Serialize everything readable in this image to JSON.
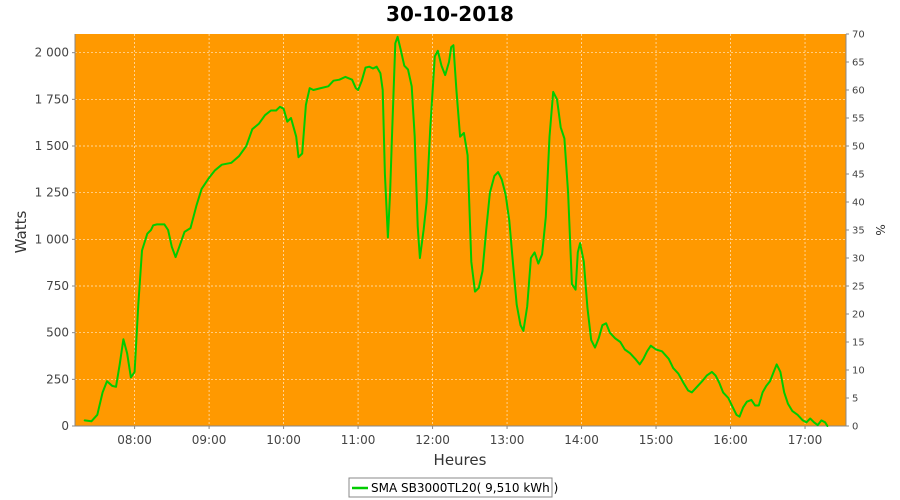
{
  "chart_data": {
    "type": "line",
    "title": "30-10-2018",
    "xlabel": "Heures",
    "ylabel": "Watts",
    "y2label": "%",
    "xlim": [
      7.2,
      17.55
    ],
    "ylim": [
      0,
      2100
    ],
    "y2lim": [
      0,
      70
    ],
    "x_ticks": [
      {
        "v": 8,
        "label": "08:00"
      },
      {
        "v": 9,
        "label": "09:00"
      },
      {
        "v": 10,
        "label": "10:00"
      },
      {
        "v": 11,
        "label": "11:00"
      },
      {
        "v": 12,
        "label": "12:00"
      },
      {
        "v": 13,
        "label": "13:00"
      },
      {
        "v": 14,
        "label": "14:00"
      },
      {
        "v": 15,
        "label": "15:00"
      },
      {
        "v": 16,
        "label": "16:00"
      },
      {
        "v": 17,
        "label": "17:00"
      }
    ],
    "y_ticks": [
      {
        "v": 0,
        "label": "0"
      },
      {
        "v": 250,
        "label": "250"
      },
      {
        "v": 500,
        "label": "500"
      },
      {
        "v": 750,
        "label": "750"
      },
      {
        "v": 1000,
        "label": "1 000"
      },
      {
        "v": 1250,
        "label": "1 250"
      },
      {
        "v": 1500,
        "label": "1 500"
      },
      {
        "v": 1750,
        "label": "1 750"
      },
      {
        "v": 2000,
        "label": "2 000"
      }
    ],
    "y2_ticks": [
      {
        "v": 0,
        "label": "0"
      },
      {
        "v": 5,
        "label": "5"
      },
      {
        "v": 10,
        "label": "10"
      },
      {
        "v": 15,
        "label": "15"
      },
      {
        "v": 20,
        "label": "20"
      },
      {
        "v": 25,
        "label": "25"
      },
      {
        "v": 30,
        "label": "30"
      },
      {
        "v": 35,
        "label": "35"
      },
      {
        "v": 40,
        "label": "40"
      },
      {
        "v": 45,
        "label": "45"
      },
      {
        "v": 50,
        "label": "50"
      },
      {
        "v": 55,
        "label": "55"
      },
      {
        "v": 60,
        "label": "60"
      },
      {
        "v": 65,
        "label": "65"
      },
      {
        "v": 70,
        "label": "70"
      }
    ],
    "grid": true,
    "background_color": "#ff9900",
    "legend_position": "bottom",
    "series": [
      {
        "name": "SMA SB3000TL20( 9,510 kWh )",
        "color": "#00cc00",
        "points": [
          [
            7.33,
            30
          ],
          [
            7.42,
            25
          ],
          [
            7.5,
            60
          ],
          [
            7.57,
            180
          ],
          [
            7.63,
            240
          ],
          [
            7.7,
            215
          ],
          [
            7.75,
            210
          ],
          [
            7.8,
            330
          ],
          [
            7.85,
            465
          ],
          [
            7.9,
            390
          ],
          [
            7.95,
            260
          ],
          [
            8.0,
            290
          ],
          [
            8.05,
            650
          ],
          [
            8.1,
            940
          ],
          [
            8.17,
            1030
          ],
          [
            8.22,
            1050
          ],
          [
            8.25,
            1075
          ],
          [
            8.3,
            1080
          ],
          [
            8.4,
            1080
          ],
          [
            8.45,
            1050
          ],
          [
            8.5,
            960
          ],
          [
            8.55,
            905
          ],
          [
            8.6,
            960
          ],
          [
            8.67,
            1040
          ],
          [
            8.75,
            1060
          ],
          [
            8.83,
            1180
          ],
          [
            8.9,
            1270
          ],
          [
            9.0,
            1330
          ],
          [
            9.08,
            1370
          ],
          [
            9.17,
            1400
          ],
          [
            9.3,
            1410
          ],
          [
            9.4,
            1445
          ],
          [
            9.5,
            1500
          ],
          [
            9.58,
            1590
          ],
          [
            9.67,
            1620
          ],
          [
            9.75,
            1665
          ],
          [
            9.83,
            1690
          ],
          [
            9.9,
            1690
          ],
          [
            9.95,
            1710
          ],
          [
            10.0,
            1700
          ],
          [
            10.05,
            1630
          ],
          [
            10.1,
            1650
          ],
          [
            10.17,
            1550
          ],
          [
            10.2,
            1440
          ],
          [
            10.25,
            1460
          ],
          [
            10.3,
            1720
          ],
          [
            10.35,
            1810
          ],
          [
            10.4,
            1800
          ],
          [
            10.5,
            1810
          ],
          [
            10.6,
            1820
          ],
          [
            10.67,
            1850
          ],
          [
            10.75,
            1855
          ],
          [
            10.83,
            1870
          ],
          [
            10.92,
            1855
          ],
          [
            10.97,
            1810
          ],
          [
            11.0,
            1800
          ],
          [
            11.05,
            1850
          ],
          [
            11.1,
            1920
          ],
          [
            11.15,
            1925
          ],
          [
            11.2,
            1915
          ],
          [
            11.25,
            1925
          ],
          [
            11.3,
            1890
          ],
          [
            11.33,
            1800
          ],
          [
            11.36,
            1350
          ],
          [
            11.4,
            1010
          ],
          [
            11.43,
            1250
          ],
          [
            11.46,
            1600
          ],
          [
            11.5,
            2050
          ],
          [
            11.53,
            2085
          ],
          [
            11.57,
            2020
          ],
          [
            11.62,
            1930
          ],
          [
            11.67,
            1910
          ],
          [
            11.72,
            1820
          ],
          [
            11.76,
            1550
          ],
          [
            11.8,
            1070
          ],
          [
            11.83,
            900
          ],
          [
            11.88,
            1050
          ],
          [
            11.92,
            1200
          ],
          [
            11.97,
            1600
          ],
          [
            12.03,
            1980
          ],
          [
            12.07,
            2010
          ],
          [
            12.12,
            1930
          ],
          [
            12.17,
            1880
          ],
          [
            12.22,
            1950
          ],
          [
            12.25,
            2030
          ],
          [
            12.28,
            2040
          ],
          [
            12.32,
            1800
          ],
          [
            12.37,
            1550
          ],
          [
            12.42,
            1570
          ],
          [
            12.47,
            1450
          ],
          [
            12.52,
            880
          ],
          [
            12.57,
            720
          ],
          [
            12.62,
            740
          ],
          [
            12.67,
            830
          ],
          [
            12.72,
            1050
          ],
          [
            12.77,
            1250
          ],
          [
            12.83,
            1340
          ],
          [
            12.88,
            1360
          ],
          [
            12.93,
            1320
          ],
          [
            12.98,
            1240
          ],
          [
            13.03,
            1100
          ],
          [
            13.08,
            870
          ],
          [
            13.13,
            650
          ],
          [
            13.18,
            540
          ],
          [
            13.22,
            510
          ],
          [
            13.27,
            640
          ],
          [
            13.32,
            900
          ],
          [
            13.37,
            930
          ],
          [
            13.42,
            870
          ],
          [
            13.47,
            920
          ],
          [
            13.52,
            1120
          ],
          [
            13.57,
            1550
          ],
          [
            13.62,
            1790
          ],
          [
            13.67,
            1750
          ],
          [
            13.72,
            1600
          ],
          [
            13.77,
            1540
          ],
          [
            13.82,
            1250
          ],
          [
            13.87,
            760
          ],
          [
            13.92,
            730
          ],
          [
            13.95,
            930
          ],
          [
            13.98,
            980
          ],
          [
            14.03,
            880
          ],
          [
            14.08,
            630
          ],
          [
            14.13,
            460
          ],
          [
            14.18,
            420
          ],
          [
            14.23,
            470
          ],
          [
            14.28,
            540
          ],
          [
            14.33,
            550
          ],
          [
            14.38,
            500
          ],
          [
            14.45,
            470
          ],
          [
            14.52,
            450
          ],
          [
            14.58,
            410
          ],
          [
            14.65,
            390
          ],
          [
            14.72,
            360
          ],
          [
            14.78,
            330
          ],
          [
            14.83,
            360
          ],
          [
            14.88,
            400
          ],
          [
            14.93,
            430
          ],
          [
            15.0,
            410
          ],
          [
            15.08,
            400
          ],
          [
            15.17,
            360
          ],
          [
            15.23,
            310
          ],
          [
            15.3,
            280
          ],
          [
            15.37,
            230
          ],
          [
            15.43,
            190
          ],
          [
            15.48,
            180
          ],
          [
            15.55,
            210
          ],
          [
            15.62,
            240
          ],
          [
            15.68,
            270
          ],
          [
            15.75,
            290
          ],
          [
            15.8,
            270
          ],
          [
            15.85,
            230
          ],
          [
            15.9,
            180
          ],
          [
            15.97,
            150
          ],
          [
            16.03,
            100
          ],
          [
            16.08,
            60
          ],
          [
            16.12,
            50
          ],
          [
            16.17,
            100
          ],
          [
            16.22,
            130
          ],
          [
            16.28,
            140
          ],
          [
            16.33,
            110
          ],
          [
            16.38,
            110
          ],
          [
            16.43,
            180
          ],
          [
            16.48,
            215
          ],
          [
            16.53,
            240
          ],
          [
            16.58,
            290
          ],
          [
            16.62,
            330
          ],
          [
            16.67,
            290
          ],
          [
            16.72,
            180
          ],
          [
            16.77,
            120
          ],
          [
            16.83,
            80
          ],
          [
            16.9,
            60
          ],
          [
            16.97,
            30
          ],
          [
            17.02,
            20
          ],
          [
            17.07,
            40
          ],
          [
            17.12,
            20
          ],
          [
            17.17,
            5
          ],
          [
            17.22,
            30
          ],
          [
            17.27,
            20
          ],
          [
            17.3,
            0
          ]
        ]
      }
    ]
  }
}
